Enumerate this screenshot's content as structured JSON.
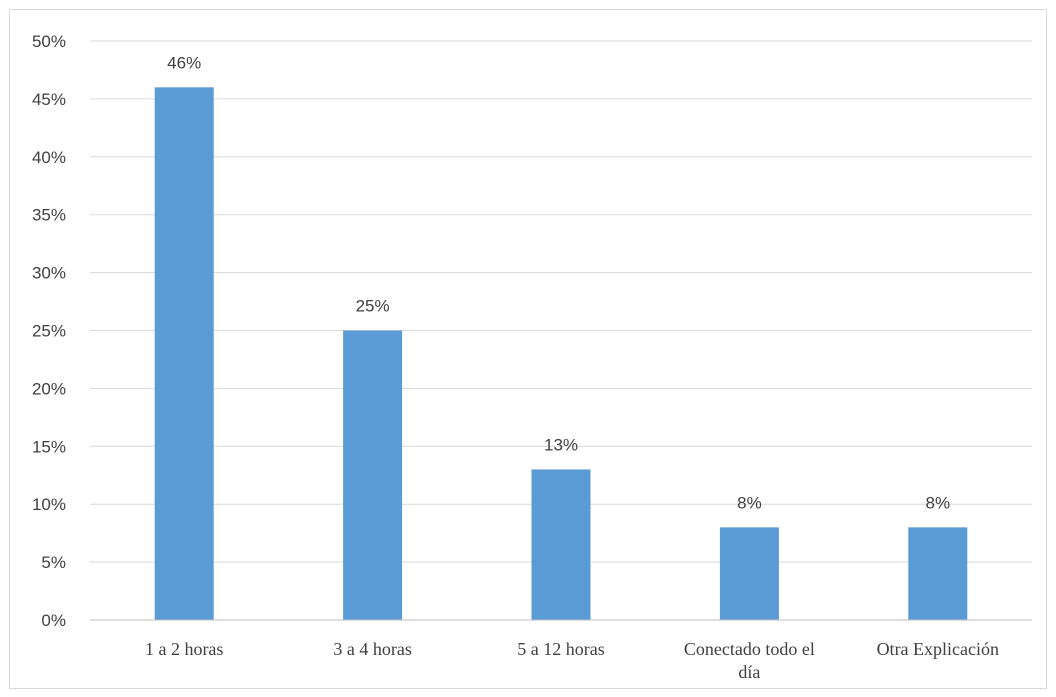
{
  "chart_data": {
    "type": "bar",
    "categories": [
      [
        "1 a 2 horas"
      ],
      [
        "3 a 4 horas"
      ],
      [
        "5 a 12 horas"
      ],
      [
        "Conectado todo el",
        "día"
      ],
      [
        "Otra Explicación"
      ]
    ],
    "values": [
      46,
      25,
      13,
      8,
      8
    ],
    "data_labels": [
      "46%",
      "25%",
      "13%",
      "8%",
      "8%"
    ],
    "y_tick_labels": [
      "0%",
      "5%",
      "10%",
      "15%",
      "20%",
      "25%",
      "30%",
      "35%",
      "40%",
      "45%",
      "50%"
    ],
    "ylim": [
      0,
      50
    ],
    "y_step": 5,
    "title": "",
    "xlabel": "",
    "ylabel": "",
    "grid": true,
    "legend": "none",
    "colors": {
      "bar": "#5B9BD5",
      "grid": "#d9d9d9",
      "axis": "#bfbfbf",
      "text": "#404040"
    }
  }
}
